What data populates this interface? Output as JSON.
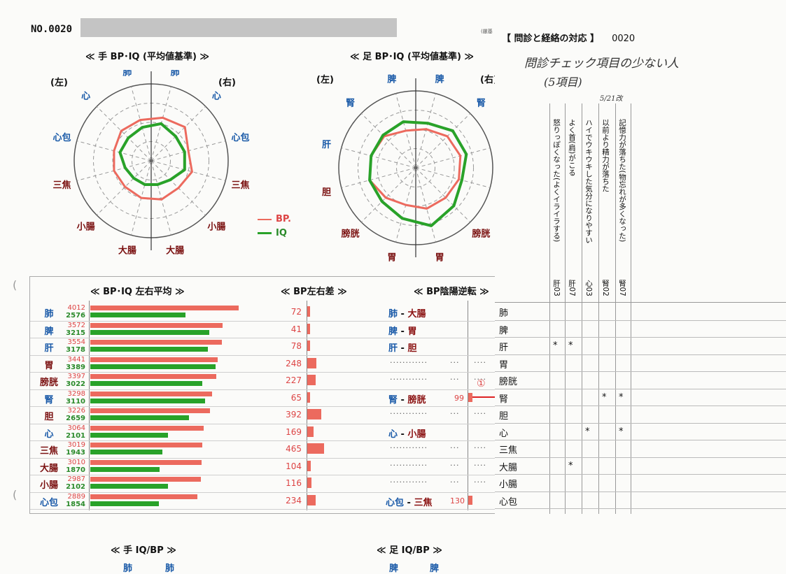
{
  "header": {
    "number": "NO.0020"
  },
  "hand_chart": {
    "title": "≪ 手 BP･IQ (平均値基準) ≫",
    "left": "(左)",
    "right": "(右)",
    "legend_bp": "BP.",
    "legend_iq": "IQ",
    "labels": [
      "肺",
      "肺",
      "心",
      "心包",
      "三焦",
      "小腸",
      "大腸",
      "大腸",
      "小腸",
      "三焦",
      "心包",
      "心"
    ]
  },
  "foot_chart": {
    "title": "≪ 足 BP･IQ (平均値基準) ≫",
    "left": "(左)",
    "right": "(右)",
    "labels": [
      "脾",
      "脾",
      "腎",
      "肝",
      "胆",
      "膀胱",
      "胃",
      "胃",
      "膀胱",
      "胆",
      "肝",
      "腎"
    ]
  },
  "avg_section": {
    "title": "≪ BP･IQ 左右平均 ≫"
  },
  "diff_section": {
    "title": "≪ BP左右差 ≫"
  },
  "rev_section": {
    "title": "≪ BP陰陽逆転 ≫"
  },
  "rows": [
    {
      "organ": "肺",
      "bp": "4012",
      "iq": "2576",
      "diff": "72",
      "rev_a": "肺",
      "rev_b": "大腸",
      "rev_val": ""
    },
    {
      "organ": "脾",
      "bp": "3572",
      "iq": "3215",
      "diff": "41",
      "rev_a": "脾",
      "rev_b": "胃",
      "rev_val": ""
    },
    {
      "organ": "肝",
      "bp": "3554",
      "iq": "3178",
      "diff": "78",
      "rev_a": "肝",
      "rev_b": "胆",
      "rev_val": ""
    },
    {
      "organ": "胃",
      "bp": "3441",
      "iq": "3389",
      "diff": "248",
      "rev_a": "",
      "rev_b": "",
      "rev_val": ""
    },
    {
      "organ": "膀胱",
      "bp": "3397",
      "iq": "3022",
      "diff": "227",
      "rev_a": "",
      "rev_b": "",
      "rev_val": ""
    },
    {
      "organ": "腎",
      "bp": "3298",
      "iq": "3110",
      "diff": "65",
      "rev_a": "腎",
      "rev_b": "膀胱",
      "rev_val": "99"
    },
    {
      "organ": "胆",
      "bp": "3226",
      "iq": "2659",
      "diff": "392",
      "rev_a": "",
      "rev_b": "",
      "rev_val": ""
    },
    {
      "organ": "心",
      "bp": "3064",
      "iq": "2101",
      "diff": "169",
      "rev_a": "心",
      "rev_b": "小腸",
      "rev_val": ""
    },
    {
      "organ": "三焦",
      "bp": "3019",
      "iq": "1943",
      "diff": "465",
      "rev_a": "",
      "rev_b": "",
      "rev_val": ""
    },
    {
      "organ": "大腸",
      "bp": "3010",
      "iq": "1870",
      "diff": "104",
      "rev_a": "",
      "rev_b": "",
      "rev_val": ""
    },
    {
      "organ": "小腸",
      "bp": "2987",
      "iq": "2102",
      "diff": "116",
      "rev_a": "",
      "rev_b": "",
      "rev_val": ""
    },
    {
      "organ": "心包",
      "bp": "2889",
      "iq": "1854",
      "diff": "234",
      "rev_a": "心包",
      "rev_b": "三焦",
      "rev_val": "130"
    }
  ],
  "marker": "①",
  "right_table": {
    "header": "【 問診と経絡の対応 】",
    "header_no": "0020",
    "handwritten_1": "問診チェック項目の少ない人",
    "handwritten_2": "(5項目)",
    "handwritten_3": "5/21改",
    "small_top": "(厳基",
    "row_labels": [
      "肺",
      "脾",
      "肝",
      "胃",
      "膀胱",
      "腎",
      "胆",
      "心",
      "三焦",
      "大腸",
      "小腸",
      "心包"
    ],
    "columns": [
      {
        "code": "肝03",
        "text": "怒りっぽくなった(よくイライラする)",
        "stars": [
          2
        ]
      },
      {
        "code": "肝07",
        "text": "よく首(肩)がこる",
        "stars": [
          2,
          9
        ]
      },
      {
        "code": "心03",
        "text": "ハイでウキウキした気分になりやすい",
        "stars": [
          7
        ]
      },
      {
        "code": "腎02",
        "text": "以前より精力が落ちた",
        "stars": [
          5
        ]
      },
      {
        "code": "腎07",
        "text": "記憶力が落ちた(物忘れが多くなった)",
        "stars": [
          5,
          7
        ]
      }
    ]
  },
  "bottom": {
    "hand_iq_title": "≪ 手 IQ/BP ≫",
    "foot_iq_title": "≪ 足 IQ/BP ≫",
    "hand_labels": [
      "肺",
      "肺"
    ],
    "foot_labels": [
      "脾",
      "脾"
    ]
  },
  "chart_data": [
    {
      "type": "radar",
      "title": "≪ 手 BP･IQ (平均値基準) ≫",
      "categories": [
        "肺(右)",
        "心(右)",
        "心包(右)",
        "三焦(右)",
        "小腸(右)",
        "大腸(右)",
        "大腸(左)",
        "小腸(左)",
        "三焦(左)",
        "心包(左)",
        "心(左)",
        "肺(左)"
      ],
      "series": [
        {
          "name": "BP.",
          "values": [
            0.58,
            0.62,
            0.5,
            0.55,
            0.5,
            0.52,
            0.5,
            0.48,
            0.5,
            0.5,
            0.55,
            0.55
          ]
        },
        {
          "name": "IQ",
          "values": [
            0.5,
            0.45,
            0.45,
            0.45,
            0.35,
            0.32,
            0.32,
            0.32,
            0.35,
            0.42,
            0.42,
            0.45
          ]
        }
      ],
      "grid": true
    },
    {
      "type": "radar",
      "title": "≪ 足 BP･IQ (平均値基準) ≫",
      "categories": [
        "脾(右)",
        "腎(右)",
        "肝(右)",
        "胆(右)",
        "膀胱(右)",
        "胃(右)",
        "胃(左)",
        "膀胱(左)",
        "胆(左)",
        "肝(左)",
        "腎(左)",
        "脾(左)"
      ],
      "series": [
        {
          "name": "BP.",
          "values": [
            0.52,
            0.58,
            0.6,
            0.58,
            0.55,
            0.55,
            0.5,
            0.55,
            0.62,
            0.6,
            0.58,
            0.5
          ]
        },
        {
          "name": "IQ",
          "values": [
            0.6,
            0.68,
            0.68,
            0.62,
            0.7,
            0.78,
            0.68,
            0.62,
            0.62,
            0.6,
            0.6,
            0.62
          ]
        }
      ],
      "grid": true
    },
    {
      "type": "bar",
      "title": "≪ BP･IQ 左右平均 ≫",
      "categories": [
        "肺",
        "脾",
        "肝",
        "胃",
        "膀胱",
        "腎",
        "胆",
        "心",
        "三焦",
        "大腸",
        "小腸",
        "心包"
      ],
      "series": [
        {
          "name": "BP.",
          "values": [
            4012,
            3572,
            3554,
            3441,
            3397,
            3298,
            3226,
            3064,
            3019,
            3010,
            2987,
            2889
          ]
        },
        {
          "name": "IQ",
          "values": [
            2576,
            3215,
            3178,
            3389,
            3022,
            3110,
            2659,
            2101,
            1943,
            1870,
            2102,
            1854
          ]
        }
      ]
    },
    {
      "type": "bar",
      "title": "≪ BP左右差 ≫",
      "categories": [
        "肺",
        "脾",
        "肝",
        "胃",
        "膀胱",
        "腎",
        "胆",
        "心",
        "三焦",
        "大腸",
        "小腸",
        "心包"
      ],
      "values": [
        72,
        41,
        78,
        248,
        227,
        65,
        392,
        169,
        465,
        104,
        116,
        234
      ]
    },
    {
      "type": "bar",
      "title": "≪ BP陰陽逆転 ≫",
      "categories": [
        "腎 - 膀胱",
        "心包 - 三焦"
      ],
      "values": [
        99,
        130
      ]
    }
  ]
}
